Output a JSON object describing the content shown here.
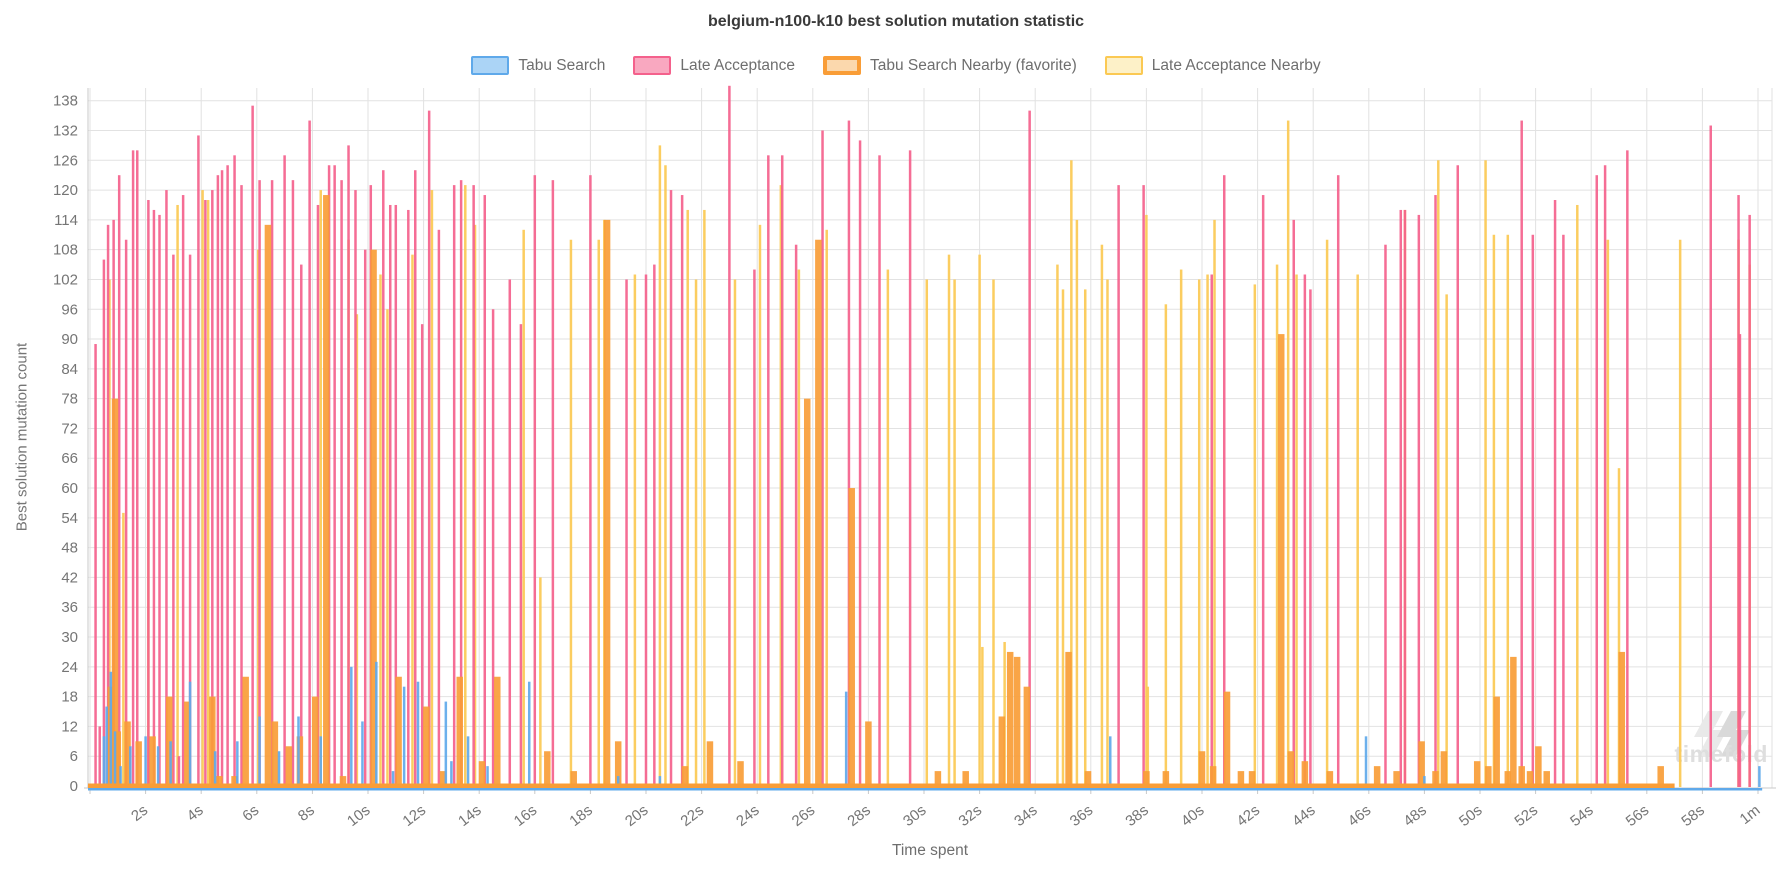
{
  "title": "belgium-n100-k10 best solution mutation statistic",
  "watermark": {
    "text": "timefold",
    "icon": "timefold-logo",
    "color": "#dedede"
  },
  "axis": {
    "grid_color": "#e2e2e2",
    "axis_color": "#c9c9c9",
    "tick_text_color": "#757575"
  },
  "chart_data": {
    "type": "bar",
    "title": "belgium-n100-k10 best solution mutation statistic",
    "xlabel": "Time spent",
    "ylabel": "Best solution mutation count",
    "x_unit": "seconds",
    "xlim": [
      0,
      60.5
    ],
    "ylim": [
      0,
      140.5
    ],
    "grid": true,
    "legend_position": "top",
    "y_ticks": [
      0,
      6,
      12,
      18,
      24,
      30,
      36,
      42,
      48,
      54,
      60,
      66,
      72,
      78,
      84,
      90,
      96,
      102,
      108,
      114,
      120,
      126,
      132,
      138
    ],
    "x_ticks": [
      {
        "t": 0,
        "label": ""
      },
      {
        "t": 2,
        "label": "2s"
      },
      {
        "t": 4,
        "label": "4s"
      },
      {
        "t": 6,
        "label": "6s"
      },
      {
        "t": 8,
        "label": "8s"
      },
      {
        "t": 10,
        "label": "10s"
      },
      {
        "t": 12,
        "label": "12s"
      },
      {
        "t": 14,
        "label": "14s"
      },
      {
        "t": 16,
        "label": "16s"
      },
      {
        "t": 18,
        "label": "18s"
      },
      {
        "t": 20,
        "label": "20s"
      },
      {
        "t": 22,
        "label": "22s"
      },
      {
        "t": 24,
        "label": "24s"
      },
      {
        "t": 26,
        "label": "26s"
      },
      {
        "t": 28,
        "label": "28s"
      },
      {
        "t": 30,
        "label": "30s"
      },
      {
        "t": 32,
        "label": "32s"
      },
      {
        "t": 34,
        "label": "34s"
      },
      {
        "t": 36,
        "label": "36s"
      },
      {
        "t": 38,
        "label": "38s"
      },
      {
        "t": 40,
        "label": "40s"
      },
      {
        "t": 42,
        "label": "42s"
      },
      {
        "t": 44,
        "label": "44s"
      },
      {
        "t": 46,
        "label": "46s"
      },
      {
        "t": 48,
        "label": "48s"
      },
      {
        "t": 50,
        "label": "50s"
      },
      {
        "t": 52,
        "label": "52s"
      },
      {
        "t": 54,
        "label": "54s"
      },
      {
        "t": 56,
        "label": "56s"
      },
      {
        "t": 58,
        "label": "58s"
      },
      {
        "t": 60,
        "label": "1m"
      }
    ],
    "series": [
      {
        "name": "Tabu Search",
        "color": "#5fa9ea",
        "legend_fill": "#abd4f6",
        "bar_width": 2.5,
        "favorite": false,
        "baseline_end": 60.15,
        "points": [
          [
            0.5,
            10
          ],
          [
            0.6,
            16
          ],
          [
            0.75,
            23
          ],
          [
            0.9,
            11
          ],
          [
            1.1,
            4
          ],
          [
            1.45,
            8
          ],
          [
            2.0,
            10
          ],
          [
            2.45,
            8
          ],
          [
            2.9,
            9
          ],
          [
            3.6,
            21
          ],
          [
            4.5,
            7
          ],
          [
            5.3,
            9
          ],
          [
            6.1,
            14
          ],
          [
            6.8,
            7
          ],
          [
            7.5,
            14
          ],
          [
            8.3,
            10
          ],
          [
            9.4,
            24
          ],
          [
            9.8,
            13
          ],
          [
            10.3,
            25
          ],
          [
            10.9,
            3
          ],
          [
            11.3,
            20
          ],
          [
            11.8,
            21
          ],
          [
            12.8,
            17
          ],
          [
            13.0,
            5
          ],
          [
            13.6,
            10
          ],
          [
            14.3,
            4
          ],
          [
            15.8,
            21
          ],
          [
            19.0,
            2
          ],
          [
            20.5,
            2
          ],
          [
            27.2,
            19
          ],
          [
            36.7,
            10
          ],
          [
            45.9,
            10
          ],
          [
            48.0,
            2
          ],
          [
            60.05,
            4
          ]
        ]
      },
      {
        "name": "Late Acceptance",
        "color": "#f4618c",
        "legend_fill": "#f9a8c0",
        "bar_width": 2.5,
        "favorite": false,
        "baseline_end": 0,
        "points": [
          [
            0.2,
            89
          ],
          [
            0.35,
            12
          ],
          [
            0.5,
            106
          ],
          [
            0.65,
            113
          ],
          [
            0.85,
            114
          ],
          [
            1.05,
            123
          ],
          [
            1.3,
            110
          ],
          [
            1.55,
            128
          ],
          [
            1.7,
            128
          ],
          [
            2.1,
            118
          ],
          [
            2.3,
            116
          ],
          [
            2.5,
            115
          ],
          [
            2.75,
            120
          ],
          [
            3.0,
            107
          ],
          [
            3.2,
            6
          ],
          [
            3.35,
            119
          ],
          [
            3.6,
            107
          ],
          [
            3.9,
            131
          ],
          [
            4.15,
            118
          ],
          [
            4.4,
            120
          ],
          [
            4.6,
            123
          ],
          [
            4.75,
            124
          ],
          [
            4.95,
            125
          ],
          [
            5.2,
            127
          ],
          [
            5.45,
            121
          ],
          [
            5.85,
            137
          ],
          [
            6.1,
            122
          ],
          [
            6.55,
            122
          ],
          [
            7.0,
            127
          ],
          [
            7.3,
            122
          ],
          [
            7.6,
            105
          ],
          [
            7.9,
            134
          ],
          [
            8.2,
            117
          ],
          [
            8.6,
            125
          ],
          [
            8.8,
            125
          ],
          [
            9.05,
            122
          ],
          [
            9.3,
            129
          ],
          [
            9.55,
            120
          ],
          [
            9.9,
            108
          ],
          [
            10.1,
            121
          ],
          [
            10.55,
            124
          ],
          [
            10.8,
            117
          ],
          [
            11.0,
            117
          ],
          [
            11.45,
            116
          ],
          [
            11.7,
            124
          ],
          [
            11.95,
            93
          ],
          [
            12.2,
            136
          ],
          [
            12.55,
            112
          ],
          [
            13.1,
            121
          ],
          [
            13.35,
            122
          ],
          [
            13.8,
            121
          ],
          [
            14.2,
            119
          ],
          [
            14.5,
            96
          ],
          [
            15.1,
            102
          ],
          [
            15.5,
            93
          ],
          [
            16.0,
            123
          ],
          [
            16.65,
            122
          ],
          [
            18.0,
            123
          ],
          [
            19.3,
            102
          ],
          [
            20.0,
            103
          ],
          [
            20.3,
            105
          ],
          [
            20.9,
            120
          ],
          [
            21.3,
            119
          ],
          [
            23.0,
            141
          ],
          [
            23.9,
            104
          ],
          [
            24.4,
            127
          ],
          [
            24.9,
            127
          ],
          [
            25.4,
            109
          ],
          [
            26.35,
            132
          ],
          [
            27.3,
            134
          ],
          [
            27.7,
            130
          ],
          [
            28.4,
            127
          ],
          [
            29.5,
            128
          ],
          [
            33.8,
            136
          ],
          [
            37.0,
            121
          ],
          [
            37.9,
            121
          ],
          [
            40.35,
            103
          ],
          [
            40.8,
            123
          ],
          [
            42.2,
            119
          ],
          [
            43.3,
            114
          ],
          [
            43.7,
            103
          ],
          [
            43.9,
            100
          ],
          [
            44.9,
            123
          ],
          [
            46.6,
            109
          ],
          [
            47.15,
            116
          ],
          [
            47.3,
            116
          ],
          [
            47.8,
            115
          ],
          [
            48.4,
            119
          ],
          [
            49.2,
            125
          ],
          [
            51.5,
            134
          ],
          [
            51.9,
            111
          ],
          [
            52.7,
            118
          ],
          [
            53.0,
            111
          ],
          [
            54.2,
            123
          ],
          [
            54.5,
            125
          ],
          [
            55.3,
            128
          ],
          [
            58.3,
            133
          ],
          [
            59.3,
            119
          ],
          [
            59.35,
            91
          ],
          [
            59.7,
            115
          ]
        ]
      },
      {
        "name": "Tabu Search Nearby (favorite)",
        "color": "#f99d37",
        "legend_fill": "#fbd8ad",
        "bar_width": 6.5,
        "favorite": true,
        "baseline_end": 57.0,
        "points": [
          [
            0.75,
            20
          ],
          [
            0.9,
            78
          ],
          [
            1.0,
            11
          ],
          [
            1.35,
            13
          ],
          [
            1.75,
            9
          ],
          [
            2.25,
            10
          ],
          [
            2.85,
            18
          ],
          [
            3.5,
            17
          ],
          [
            4.4,
            18
          ],
          [
            4.65,
            2
          ],
          [
            5.2,
            2
          ],
          [
            5.6,
            22
          ],
          [
            6.4,
            113
          ],
          [
            6.65,
            13
          ],
          [
            7.15,
            8
          ],
          [
            7.55,
            10
          ],
          [
            8.1,
            18
          ],
          [
            8.5,
            119
          ],
          [
            9.1,
            2
          ],
          [
            10.2,
            108
          ],
          [
            11.1,
            22
          ],
          [
            12.1,
            16
          ],
          [
            12.7,
            3
          ],
          [
            13.3,
            22
          ],
          [
            14.1,
            5
          ],
          [
            14.65,
            22
          ],
          [
            16.45,
            7
          ],
          [
            17.4,
            3
          ],
          [
            18.6,
            114
          ],
          [
            19.0,
            9
          ],
          [
            21.4,
            4
          ],
          [
            22.3,
            9
          ],
          [
            23.4,
            5
          ],
          [
            25.8,
            78
          ],
          [
            26.2,
            110
          ],
          [
            27.4,
            60
          ],
          [
            28.0,
            13
          ],
          [
            30.5,
            3
          ],
          [
            31.5,
            3
          ],
          [
            32.8,
            14
          ],
          [
            33.1,
            27
          ],
          [
            33.35,
            26
          ],
          [
            33.7,
            20
          ],
          [
            35.2,
            27
          ],
          [
            35.9,
            3
          ],
          [
            38.0,
            3
          ],
          [
            38.7,
            3
          ],
          [
            40.0,
            7
          ],
          [
            40.4,
            4
          ],
          [
            40.9,
            19
          ],
          [
            41.4,
            3
          ],
          [
            41.8,
            3
          ],
          [
            42.85,
            91
          ],
          [
            43.2,
            7
          ],
          [
            43.7,
            5
          ],
          [
            44.6,
            3
          ],
          [
            46.3,
            4
          ],
          [
            47.0,
            3
          ],
          [
            47.9,
            9
          ],
          [
            48.4,
            3
          ],
          [
            48.7,
            7
          ],
          [
            49.9,
            5
          ],
          [
            50.3,
            4
          ],
          [
            50.6,
            18
          ],
          [
            51.0,
            3
          ],
          [
            51.2,
            26
          ],
          [
            51.5,
            4
          ],
          [
            51.8,
            3
          ],
          [
            52.1,
            8
          ],
          [
            52.4,
            3
          ],
          [
            55.1,
            27
          ],
          [
            56.5,
            4
          ]
        ]
      },
      {
        "name": "Late Acceptance Nearby",
        "color": "#fbc953",
        "legend_fill": "#fdf1c8",
        "bar_width": 2.5,
        "favorite": false,
        "baseline_end": 0,
        "points": [
          [
            0.7,
            102
          ],
          [
            1.2,
            55
          ],
          [
            2.1,
            108
          ],
          [
            3.15,
            117
          ],
          [
            4.05,
            120
          ],
          [
            4.25,
            118
          ],
          [
            6.05,
            108
          ],
          [
            8.3,
            120
          ],
          [
            9.3,
            110
          ],
          [
            9.6,
            95
          ],
          [
            10.45,
            103
          ],
          [
            10.7,
            96
          ],
          [
            11.6,
            107
          ],
          [
            12.3,
            120
          ],
          [
            13.5,
            121
          ],
          [
            13.85,
            113
          ],
          [
            15.6,
            112
          ],
          [
            16.2,
            42
          ],
          [
            17.3,
            110
          ],
          [
            18.3,
            110
          ],
          [
            18.5,
            114
          ],
          [
            19.6,
            103
          ],
          [
            20.5,
            129
          ],
          [
            20.7,
            125
          ],
          [
            21.5,
            116
          ],
          [
            21.8,
            102
          ],
          [
            22.1,
            116
          ],
          [
            23.2,
            102
          ],
          [
            24.1,
            113
          ],
          [
            24.85,
            121
          ],
          [
            25.5,
            104
          ],
          [
            26.5,
            112
          ],
          [
            28.7,
            104
          ],
          [
            30.1,
            102
          ],
          [
            30.9,
            107
          ],
          [
            31.1,
            102
          ],
          [
            32.0,
            107
          ],
          [
            32.1,
            28
          ],
          [
            32.5,
            102
          ],
          [
            32.9,
            29
          ],
          [
            34.8,
            105
          ],
          [
            35.0,
            100
          ],
          [
            35.3,
            126
          ],
          [
            35.5,
            114
          ],
          [
            35.8,
            100
          ],
          [
            36.4,
            109
          ],
          [
            36.6,
            102
          ],
          [
            38.0,
            115
          ],
          [
            38.05,
            20
          ],
          [
            38.7,
            97
          ],
          [
            39.25,
            104
          ],
          [
            39.9,
            102
          ],
          [
            40.2,
            103
          ],
          [
            40.45,
            114
          ],
          [
            41.9,
            101
          ],
          [
            42.7,
            105
          ],
          [
            43.1,
            134
          ],
          [
            43.4,
            103
          ],
          [
            44.5,
            110
          ],
          [
            45.6,
            103
          ],
          [
            47.3,
            116
          ],
          [
            48.5,
            126
          ],
          [
            48.8,
            99
          ],
          [
            50.2,
            126
          ],
          [
            50.5,
            111
          ],
          [
            51.0,
            111
          ],
          [
            53.5,
            117
          ],
          [
            54.6,
            110
          ],
          [
            55.0,
            64
          ],
          [
            57.2,
            110
          ],
          [
            59.3,
            110
          ],
          [
            59.7,
            105
          ]
        ]
      }
    ]
  }
}
